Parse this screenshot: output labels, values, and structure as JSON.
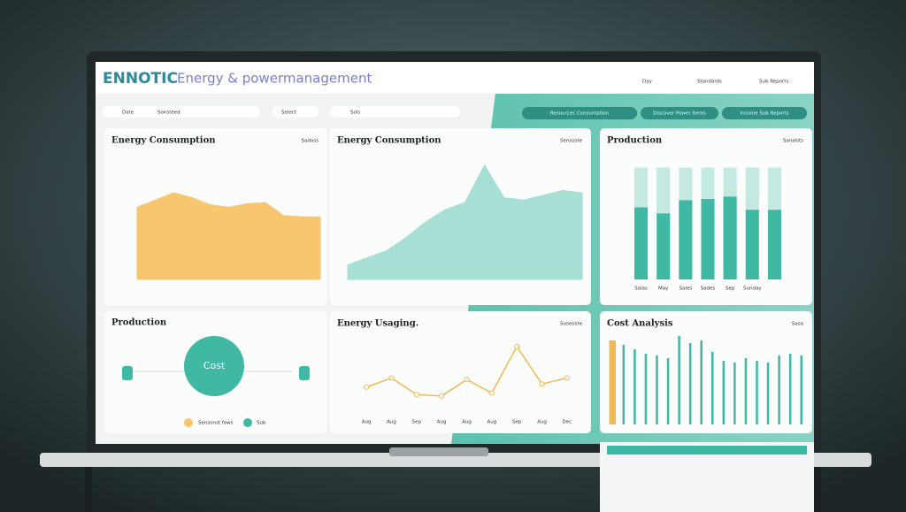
{
  "header": {
    "logo": "ENNOTIC",
    "title": "Energy & powermanagement",
    "menu": [
      "Day",
      "Standards",
      "Sub Reports"
    ]
  },
  "filters": [
    "Date",
    "Sonsteed",
    "Select",
    "Sols"
  ],
  "buttons": [
    "Resources Consumption",
    "Discover Power Items",
    "Income Sub Reports"
  ],
  "production": {
    "title": "Production",
    "center": "Cost",
    "legend": [
      "Sensonst fows",
      "Sub"
    ]
  },
  "chart_data": [
    {
      "type": "area",
      "title": "Energy Consumption",
      "control": "Sadoss",
      "color": "#f7c66f",
      "ylim": [
        0,
        100
      ],
      "values": [
        60,
        66,
        72,
        68,
        62,
        60,
        63,
        64,
        53,
        52,
        52
      ]
    },
    {
      "type": "area",
      "title": "Energy Consumption",
      "control": "Sensoste",
      "color": "#a6dfd4",
      "ylim": [
        0,
        100
      ],
      "values": [
        12,
        18,
        24,
        35,
        48,
        58,
        64,
        95,
        68,
        66,
        70,
        74,
        72
      ]
    },
    {
      "type": "stacked",
      "title": "Production",
      "control": "Sanalsts",
      "ylim": [
        0,
        100
      ],
      "categories": [
        "Salas",
        "May",
        "Sales",
        "Sades",
        "Sep",
        "Sunday",
        null
      ],
      "series": [
        {
          "color": "#3fb8a4",
          "values": [
            60,
            55,
            66,
            67,
            69,
            58,
            58
          ]
        },
        {
          "color": "#c3e9e1",
          "values": [
            33,
            38,
            27,
            26,
            24,
            35,
            35
          ]
        }
      ]
    },
    {
      "type": "line",
      "title": "Energy Usaging.",
      "control": "Suseoste",
      "color": "#f2b84f",
      "ylim": [
        0,
        100
      ],
      "categories": [
        "Aug",
        "Aug",
        "Sep",
        "Aug",
        "Aug",
        "Aug",
        "Sep",
        "Aug",
        "Dec"
      ],
      "values": [
        38,
        50,
        28,
        26,
        48,
        30,
        92,
        42,
        50
      ]
    },
    {
      "type": "bar",
      "title": "Cost Analysis",
      "control": "Sasa",
      "ylim": [
        0,
        100
      ],
      "colors": [
        "#f2b84f",
        "#3fb8a4",
        "#3fb8a4",
        "#3fb8a4",
        "#3fb8a4",
        "#3fb8a4",
        "#3fb8a4",
        "#3fb8a4",
        "#3fb8a4",
        "#3fb8a4",
        "#3fb8a4",
        "#3fb8a4",
        "#3fb8a4",
        "#3fb8a4",
        "#3fb8a4",
        "#3fb8a4",
        "#3fb8a4",
        "#3fb8a4"
      ],
      "values": [
        95,
        90,
        85,
        80,
        78,
        75,
        100,
        92,
        95,
        82,
        72,
        70,
        75,
        72,
        70,
        78,
        80,
        78
      ]
    }
  ]
}
